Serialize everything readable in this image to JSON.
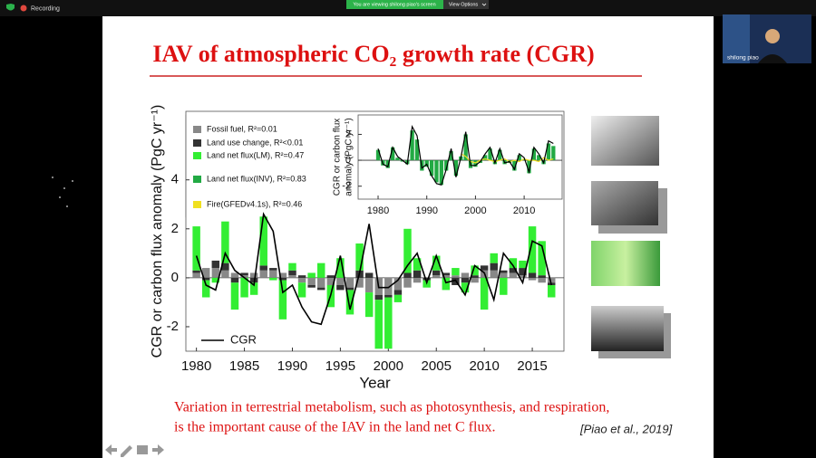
{
  "zoom": {
    "recording": "Recording",
    "banner": "You are viewing shilong piao's screen",
    "view_options": "View Options",
    "participant": "shilong piao"
  },
  "slide": {
    "title": "IAV of atmospheric CO₂ growth rate (CGR)",
    "caption": [
      "Variation in terrestrial metabolism, such as photosynthesis, and respiration,",
      "is the important cause of the IAV in the land net C flux."
    ],
    "citation": "[Piao et al., 2019]"
  },
  "chart_data": [
    {
      "type": "stacked_bar_line",
      "xlabel": "Year",
      "ylabel": [
        "CGR or carbon flux anomaly (PgC yr⁻¹)"
      ],
      "x": [
        1980,
        1981,
        1982,
        1983,
        1984,
        1985,
        1986,
        1987,
        1988,
        1989,
        1990,
        1991,
        1992,
        1993,
        1994,
        1995,
        1996,
        1997,
        1998,
        1999,
        2000,
        2001,
        2002,
        2003,
        2004,
        2005,
        2006,
        2007,
        2008,
        2009,
        2010,
        2011,
        2012,
        2013,
        2014,
        2015,
        2016,
        2017
      ],
      "xlim": [
        1978.9,
        2018.3
      ],
      "xticks": [
        1980,
        1985,
        1990,
        1995,
        2000,
        2005,
        2010,
        2015
      ],
      "ylim": [
        -3,
        6.8
      ],
      "yticks": [
        -2,
        0,
        2,
        4
      ],
      "series": [
        {
          "name": "Fossil fuel, R²=0.01",
          "kind": "bar",
          "color": "#888888",
          "values": [
            0.2,
            0.4,
            0.4,
            0.3,
            0.2,
            0.1,
            0.2,
            0.3,
            0.3,
            0.2,
            0.1,
            -0.2,
            -0.3,
            -0.4,
            -0.3,
            -0.3,
            -0.4,
            -0.4,
            -0.6,
            -0.7,
            -0.7,
            -0.5,
            -0.4,
            -0.2,
            0.0,
            0.1,
            0.1,
            0.1,
            0.2,
            -0.2,
            0.3,
            0.3,
            0.2,
            0.2,
            0.1,
            -0.1,
            -0.2,
            -0.2
          ]
        },
        {
          "name": "Land use change, R²<0.01",
          "kind": "bar",
          "color": "#333333",
          "values": [
            0.1,
            -0.1,
            0.3,
            0.3,
            -0.2,
            0.1,
            -0.2,
            0.2,
            0.1,
            -0.1,
            0.2,
            0.1,
            -0.1,
            -0.1,
            0.1,
            -0.2,
            -0.1,
            0.3,
            0.2,
            -0.2,
            -0.1,
            -0.2,
            0.2,
            0.3,
            -0.1,
            0.2,
            0.1,
            -0.3,
            -0.2,
            0.1,
            0.2,
            0.3,
            0.1,
            0.2,
            0.3,
            0.2,
            0.1,
            -0.1
          ]
        },
        {
          "name": "Land net flux(LM), R²=0.47",
          "kind": "bar",
          "color": "#33ee33",
          "values": [
            1.8,
            -0.7,
            -0.2,
            1.7,
            -1.1,
            -0.8,
            -0.5,
            2.0,
            -0.1,
            -1.6,
            0.3,
            -0.6,
            0.2,
            0.6,
            -0.9,
            0.8,
            -1.0,
            1.1,
            -1.0,
            -2.0,
            -2.1,
            -0.3,
            1.8,
            0.5,
            -0.3,
            0.6,
            -0.5,
            0.3,
            -0.4,
            0.4,
            -1.3,
            0.4,
            -0.7,
            0.4,
            0.3,
            1.9,
            1.4,
            -0.5
          ]
        },
        {
          "name": "CGR",
          "kind": "line",
          "color": "#000000",
          "values": [
            0.9,
            -0.3,
            -0.5,
            1.0,
            0.3,
            0.0,
            -0.3,
            2.6,
            1.9,
            -0.6,
            -0.3,
            -1.2,
            -1.8,
            -1.9,
            -0.7,
            0.9,
            -1.3,
            0.2,
            2.2,
            -0.4,
            -0.4,
            -0.1,
            0.5,
            1.0,
            -0.2,
            0.9,
            -0.2,
            -0.1,
            -0.7,
            0.5,
            0.2,
            -0.9,
            1.0,
            0.5,
            -0.2,
            1.5,
            1.3,
            -0.3
          ]
        }
      ]
    },
    {
      "type": "stacked_bar_line",
      "ylabel": [
        "CGR or carbon flux",
        "anomaly (PgC yr⁻¹)"
      ],
      "x": [
        1980,
        1981,
        1982,
        1983,
        1984,
        1985,
        1986,
        1987,
        1988,
        1989,
        1990,
        1991,
        1992,
        1993,
        1994,
        1995,
        1996,
        1997,
        1998,
        1999,
        2000,
        2001,
        2002,
        2003,
        2004,
        2005,
        2006,
        2007,
        2008,
        2009,
        2010,
        2011,
        2012,
        2013,
        2014,
        2015,
        2016
      ],
      "xlim": [
        1975.9,
        2017.8
      ],
      "xticks": [
        1980,
        1990,
        2000,
        2010
      ],
      "ylim": [
        -3,
        3.5
      ],
      "yticks": [
        -2,
        0,
        2
      ],
      "series": [
        {
          "name": "Land net flux(INV), R²=0.83",
          "kind": "bar",
          "color": "#22aa44",
          "values": [
            0.8,
            -0.4,
            -0.6,
            1.0,
            0.2,
            -0.1,
            -0.3,
            2.3,
            1.6,
            -0.8,
            -0.5,
            -1.2,
            -1.7,
            -1.9,
            -0.8,
            0.7,
            -1.2,
            0.3,
            2.0,
            -0.6,
            -0.5,
            -0.2,
            0.4,
            0.9,
            -0.3,
            0.8,
            -0.3,
            -0.2,
            -0.8,
            0.4,
            0.1,
            -1.0,
            0.9,
            0.4,
            -0.3,
            1.3,
            1.1
          ]
        },
        {
          "name": "Fire(GFEDv4.1s), R²=0.46",
          "kind": "line",
          "color": "#f0e020",
          "values": [
            null,
            null,
            null,
            null,
            null,
            null,
            null,
            null,
            null,
            null,
            null,
            null,
            null,
            null,
            null,
            null,
            null,
            0.5,
            0.3,
            -0.1,
            -0.2,
            0.0,
            0.1,
            0.0,
            -0.1,
            0.0,
            0.1,
            -0.1,
            0.0,
            -0.1,
            0.1,
            0.0,
            0.0,
            -0.1,
            0.2,
            0.0,
            0.1
          ]
        },
        {
          "name": "CGR",
          "kind": "line",
          "color": "#000000",
          "values": [
            0.9,
            -0.3,
            -0.5,
            1.0,
            0.3,
            0.0,
            -0.3,
            2.6,
            1.9,
            -0.6,
            -0.3,
            -1.2,
            -1.8,
            -1.9,
            -0.7,
            0.9,
            -1.3,
            0.2,
            2.2,
            -0.4,
            -0.4,
            -0.1,
            0.5,
            1.0,
            -0.2,
            0.9,
            -0.2,
            -0.1,
            -0.7,
            0.5,
            0.2,
            -0.9,
            1.0,
            0.5,
            -0.2,
            1.5,
            1.3
          ]
        }
      ]
    }
  ]
}
